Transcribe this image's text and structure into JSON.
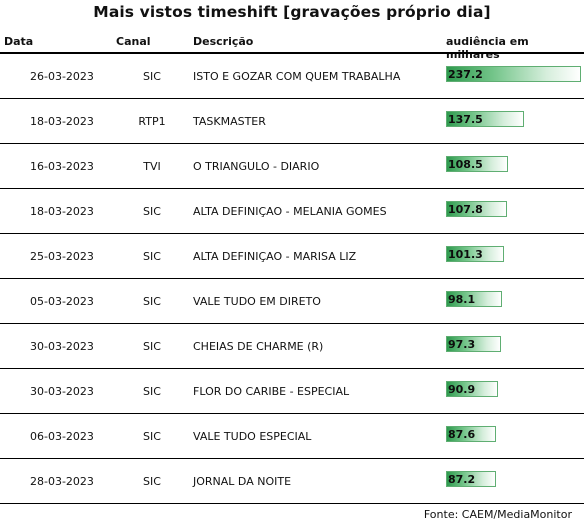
{
  "title": "Mais vistos timeshift [gravações próprio dia]",
  "headers": {
    "date": "Data",
    "canal": "Canal",
    "desc": "Descrição",
    "audience": "audiência em milhares"
  },
  "rows": [
    {
      "date": "26-03-2023",
      "canal": "SIC",
      "desc": "ISTO E GOZAR COM QUEM TRABALHA",
      "value": "237.2"
    },
    {
      "date": "18-03-2023",
      "canal": "RTP1",
      "desc": "TASKMASTER",
      "value": "137.5"
    },
    {
      "date": "16-03-2023",
      "canal": "TVI",
      "desc": "O TRIANGULO - DIARIO",
      "value": "108.5"
    },
    {
      "date": "18-03-2023",
      "canal": "SIC",
      "desc": "ALTA DEFINIÇAO - MELANIA GOMES",
      "value": "107.8"
    },
    {
      "date": "25-03-2023",
      "canal": "SIC",
      "desc": "ALTA DEFINIÇAO - MARISA LIZ",
      "value": "101.3"
    },
    {
      "date": "05-03-2023",
      "canal": "SIC",
      "desc": "VALE TUDO EM DIRETO",
      "value": "98.1"
    },
    {
      "date": "30-03-2023",
      "canal": "SIC",
      "desc": "CHEIAS DE CHARME (R)",
      "value": "97.3"
    },
    {
      "date": "30-03-2023",
      "canal": "SIC",
      "desc": "FLOR DO CARIBE - ESPECIAL",
      "value": "90.9"
    },
    {
      "date": "06-03-2023",
      "canal": "SIC",
      "desc": "VALE TUDO ESPECIAL",
      "value": "87.6"
    },
    {
      "date": "28-03-2023",
      "canal": "SIC",
      "desc": "JORNAL DA NOITE",
      "value": "87.2"
    }
  ],
  "bar_color": "#2e9a4e",
  "source": "Fonte: CAEM/MediaMonitor"
}
